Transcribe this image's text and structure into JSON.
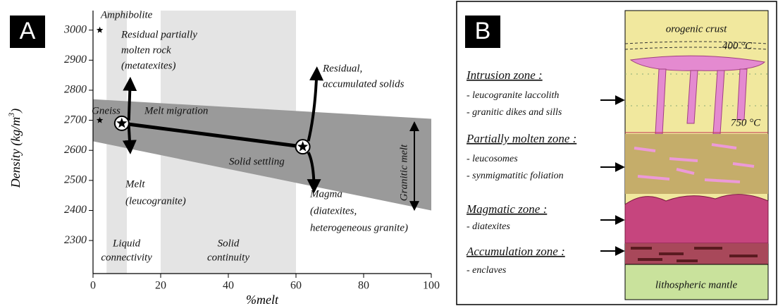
{
  "panel_a": {
    "label": "A",
    "x_label": "%melt",
    "y_label": "Density (kg/m",
    "y_label_sup": "3",
    "y_label_end": ")",
    "xlim": [
      0,
      100
    ],
    "ylim": [
      2190,
      3065
    ],
    "xticks": [
      0,
      20,
      40,
      60,
      80,
      100
    ],
    "yticks": [
      2300,
      2400,
      2500,
      2600,
      2700,
      2800,
      2900,
      3000
    ],
    "regions": [
      {
        "label_lines": [
          "Liquid",
          "connectivity"
        ],
        "x": [
          4,
          10
        ]
      },
      {
        "label_lines": [
          "Solid",
          "continuity"
        ],
        "x": [
          20,
          60
        ]
      }
    ],
    "melt_band": {
      "x": [
        0,
        100
      ],
      "top": [
        2770,
        2705
      ],
      "bottom": [
        2630,
        2400
      ]
    },
    "points": [
      {
        "label": "Amphibolite",
        "x": 2,
        "y": 3000
      },
      {
        "label": "Gneiss",
        "x": 2,
        "y": 2700
      }
    ],
    "melt_migration": {
      "label": "Melt migration",
      "x": 8.5,
      "y": 2690
    },
    "solid_settling": {
      "label": "Solid settling",
      "x": 62,
      "y": 2612
    },
    "granitic_melt": {
      "label": "Granitic melt",
      "x": 95,
      "y": [
        2690,
        2405
      ]
    },
    "annotations": [
      [
        "Residual partially",
        "molten rock",
        "(metatexites)"
      ],
      [
        "Residual,",
        "accumulated solids"
      ],
      [
        "Melt",
        "(leucogranite)"
      ],
      [
        "Magma",
        "(diatexites,",
        "heterogeneous granite)"
      ]
    ]
  },
  "panel_b": {
    "label": "B",
    "column_labels": [
      "orogenic crust",
      "400 °C",
      "750 °C",
      "lithospheric mantle"
    ],
    "zones": [
      {
        "title": "Intrusion zone :",
        "items": [
          "- leucogranite laccolith",
          "- granitic dikes and sills"
        ]
      },
      {
        "title": "Partially molten zone :",
        "items": [
          "- leucosomes",
          "- synmigmatitic foliation"
        ]
      },
      {
        "title": "Magmatic zone :",
        "items": [
          "- diatexites"
        ]
      },
      {
        "title": "Accumulation zone :",
        "items": [
          "- enclaves"
        ]
      }
    ]
  }
}
